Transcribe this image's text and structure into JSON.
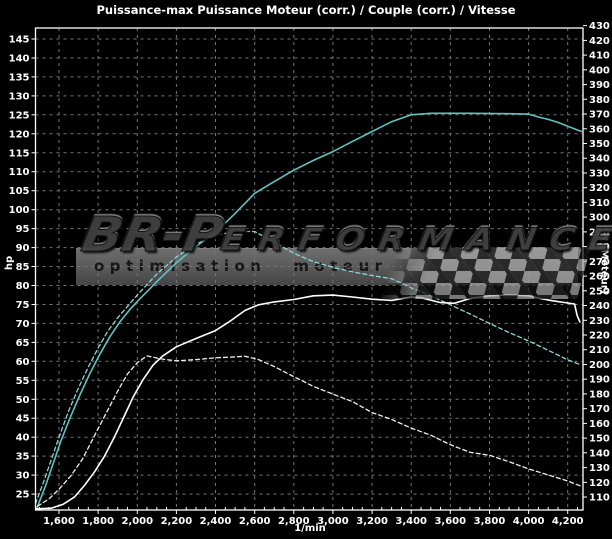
{
  "chart_data": {
    "type": "line",
    "title": "Puissance-max Puissance Moteur (corr.) / Couple (corr.) / Vitesse",
    "x_axis": {
      "label": "1/min",
      "min": 1480,
      "max": 4278,
      "minor_tick_step": 50,
      "ticks": [
        {
          "v": 1600,
          "label": "1,600"
        },
        {
          "v": 1800,
          "label": "1,800"
        },
        {
          "v": 2000,
          "label": "2,000"
        },
        {
          "v": 2200,
          "label": "2,200"
        },
        {
          "v": 2400,
          "label": "2,400"
        },
        {
          "v": 2600,
          "label": "2,600"
        },
        {
          "v": 2800,
          "label": "2,800"
        },
        {
          "v": 3000,
          "label": "3,000"
        },
        {
          "v": 3200,
          "label": "3,200"
        },
        {
          "v": 3400,
          "label": "3,400"
        },
        {
          "v": 3600,
          "label": "3,600"
        },
        {
          "v": 3800,
          "label": "3,800"
        },
        {
          "v": 4000,
          "label": "4,000"
        },
        {
          "v": 4200,
          "label": "4,200"
        }
      ]
    },
    "left_axis": {
      "label": "hp",
      "min": 20.8,
      "max": 147.9,
      "ticks": [
        25,
        30,
        35,
        40,
        45,
        50,
        55,
        60,
        65,
        70,
        75,
        80,
        85,
        90,
        95,
        100,
        105,
        110,
        115,
        120,
        125,
        130,
        135,
        140,
        145
      ]
    },
    "right_axis": {
      "label": "N (Moteur)",
      "min": 101.2,
      "max": 428.4,
      "ticks": [
        110,
        120,
        130,
        140,
        150,
        160,
        170,
        180,
        190,
        200,
        210,
        220,
        230,
        240,
        250,
        260,
        270,
        280,
        290,
        300,
        310,
        320,
        330,
        340,
        350,
        360,
        370,
        380,
        390,
        400,
        410,
        420,
        430
      ]
    },
    "grid": {
      "color": "#767676",
      "dash": "3,4",
      "horizontal": "left-axis-ticks",
      "vertical": "x-axis-ticks"
    },
    "legend": "none",
    "series": [
      {
        "name": "Puissance moteur (corr.)",
        "axis": "left_axis",
        "unit": "hp",
        "color": "#5fc3c3",
        "style": "solid",
        "points": [
          [
            1485,
            21
          ],
          [
            1530,
            27
          ],
          [
            1570,
            33
          ],
          [
            1610,
            39
          ],
          [
            1660,
            45.5
          ],
          [
            1710,
            51.5
          ],
          [
            1760,
            57
          ],
          [
            1810,
            62
          ],
          [
            1860,
            66.5
          ],
          [
            1910,
            70.3
          ],
          [
            1960,
            73.5
          ],
          [
            2000,
            75.8
          ],
          [
            2100,
            81
          ],
          [
            2200,
            86
          ],
          [
            2300,
            90.3
          ],
          [
            2400,
            94
          ],
          [
            2500,
            99
          ],
          [
            2600,
            104.3
          ],
          [
            2700,
            107.4
          ],
          [
            2800,
            110.4
          ],
          [
            2900,
            113
          ],
          [
            3000,
            115.3
          ],
          [
            3100,
            118
          ],
          [
            3200,
            120.6
          ],
          [
            3300,
            123.2
          ],
          [
            3400,
            125
          ],
          [
            3500,
            125.4
          ],
          [
            3700,
            125.4
          ],
          [
            3900,
            125.3
          ],
          [
            4000,
            125.2
          ],
          [
            4060,
            124.3
          ],
          [
            4100,
            123.8
          ],
          [
            4150,
            123
          ],
          [
            4200,
            122
          ],
          [
            4270,
            120.6
          ]
        ]
      },
      {
        "name": "Puissance moteur",
        "axis": "left_axis",
        "unit": "hp",
        "color": "#8ad6d6",
        "style": "dashed",
        "points": [
          [
            1480,
            22.5
          ],
          [
            1520,
            28
          ],
          [
            1560,
            34
          ],
          [
            1600,
            40
          ],
          [
            1650,
            47
          ],
          [
            1700,
            53
          ],
          [
            1750,
            58.5
          ],
          [
            1800,
            63.5
          ],
          [
            1850,
            68
          ],
          [
            1900,
            71.5
          ],
          [
            1950,
            74.5
          ],
          [
            2000,
            77.5
          ],
          [
            2100,
            83
          ],
          [
            2200,
            87.5
          ],
          [
            2300,
            91
          ],
          [
            2400,
            93.2
          ],
          [
            2500,
            94.3
          ],
          [
            2600,
            94.2
          ],
          [
            2700,
            91.5
          ],
          [
            2800,
            88.5
          ],
          [
            2900,
            86.3
          ],
          [
            3000,
            84.8
          ],
          [
            3100,
            83.6
          ],
          [
            3200,
            82.6
          ],
          [
            3300,
            81.8
          ],
          [
            3400,
            79.4
          ],
          [
            3500,
            77.3
          ],
          [
            3600,
            74.9
          ],
          [
            3700,
            72.5
          ],
          [
            3800,
            70
          ],
          [
            3900,
            67.6
          ],
          [
            4000,
            65.4
          ],
          [
            4100,
            62.9
          ],
          [
            4200,
            60.4
          ],
          [
            4270,
            59
          ]
        ]
      },
      {
        "name": "Couple (corr.)",
        "axis": "right_axis",
        "unit": "N",
        "color": "#ffffff",
        "style": "solid",
        "points": [
          [
            1485,
            102
          ],
          [
            1560,
            102.4
          ],
          [
            1620,
            105
          ],
          [
            1680,
            110.1
          ],
          [
            1730,
            117.8
          ],
          [
            1780,
            126.8
          ],
          [
            1830,
            137.1
          ],
          [
            1880,
            149.9
          ],
          [
            1930,
            164
          ],
          [
            1980,
            178.1
          ],
          [
            2030,
            189.7
          ],
          [
            2080,
            199.4
          ],
          [
            2130,
            205.8
          ],
          [
            2200,
            212
          ],
          [
            2300,
            217.6
          ],
          [
            2400,
            223
          ],
          [
            2480,
            229.9
          ],
          [
            2550,
            236.6
          ],
          [
            2620,
            240.5
          ],
          [
            2700,
            242.5
          ],
          [
            2800,
            244.1
          ],
          [
            2900,
            246.6
          ],
          [
            3000,
            247.1
          ],
          [
            3100,
            245.8
          ],
          [
            3200,
            244.3
          ],
          [
            3300,
            243.5
          ],
          [
            3400,
            245.8
          ],
          [
            3450,
            245.3
          ],
          [
            3550,
            242
          ],
          [
            3620,
            241.5
          ],
          [
            3700,
            244.8
          ],
          [
            3800,
            246.6
          ],
          [
            3900,
            247.1
          ],
          [
            4000,
            246.6
          ],
          [
            4060,
            244.8
          ],
          [
            4120,
            243.3
          ],
          [
            4200,
            241.7
          ],
          [
            4235,
            241
          ],
          [
            4248,
            233.3
          ],
          [
            4262,
            228.9
          ]
        ]
      },
      {
        "name": "Couple",
        "axis": "right_axis",
        "unit": "N",
        "color": "#f0f0f0",
        "style": "dashed",
        "points": [
          [
            1490,
            103.7
          ],
          [
            1550,
            108.9
          ],
          [
            1600,
            115.3
          ],
          [
            1660,
            124.2
          ],
          [
            1720,
            135.8
          ],
          [
            1780,
            151.2
          ],
          [
            1840,
            166.6
          ],
          [
            1900,
            182
          ],
          [
            1950,
            193.5
          ],
          [
            2000,
            201.2
          ],
          [
            2050,
            205.8
          ],
          [
            2120,
            203.8
          ],
          [
            2200,
            202.5
          ],
          [
            2300,
            203.3
          ],
          [
            2400,
            204.5
          ],
          [
            2500,
            205.1
          ],
          [
            2550,
            205.6
          ],
          [
            2620,
            203.3
          ],
          [
            2700,
            198.6
          ],
          [
            2800,
            191.7
          ],
          [
            2900,
            185.1
          ],
          [
            3000,
            179.9
          ],
          [
            3100,
            174.8
          ],
          [
            3200,
            167.3
          ],
          [
            3300,
            162.7
          ],
          [
            3400,
            156.8
          ],
          [
            3500,
            152
          ],
          [
            3600,
            145.5
          ],
          [
            3700,
            140.4
          ],
          [
            3800,
            138.4
          ],
          [
            3900,
            134
          ],
          [
            4000,
            129.1
          ],
          [
            4100,
            125
          ],
          [
            4200,
            120.9
          ],
          [
            4270,
            117.3
          ]
        ]
      }
    ]
  },
  "watermark": {
    "brand_prefix": "BR-P",
    "brand_suffix": "ERFORMANCE",
    "tagline": "optimisation moteur"
  },
  "colors": {
    "background": "#000000",
    "axis": "#ffffff",
    "grid": "#767676",
    "power_corrected": "#5fc3c3",
    "power_original": "#8ad6d6",
    "torque_corrected": "#ffffff",
    "torque_original": "#f0f0f0"
  }
}
